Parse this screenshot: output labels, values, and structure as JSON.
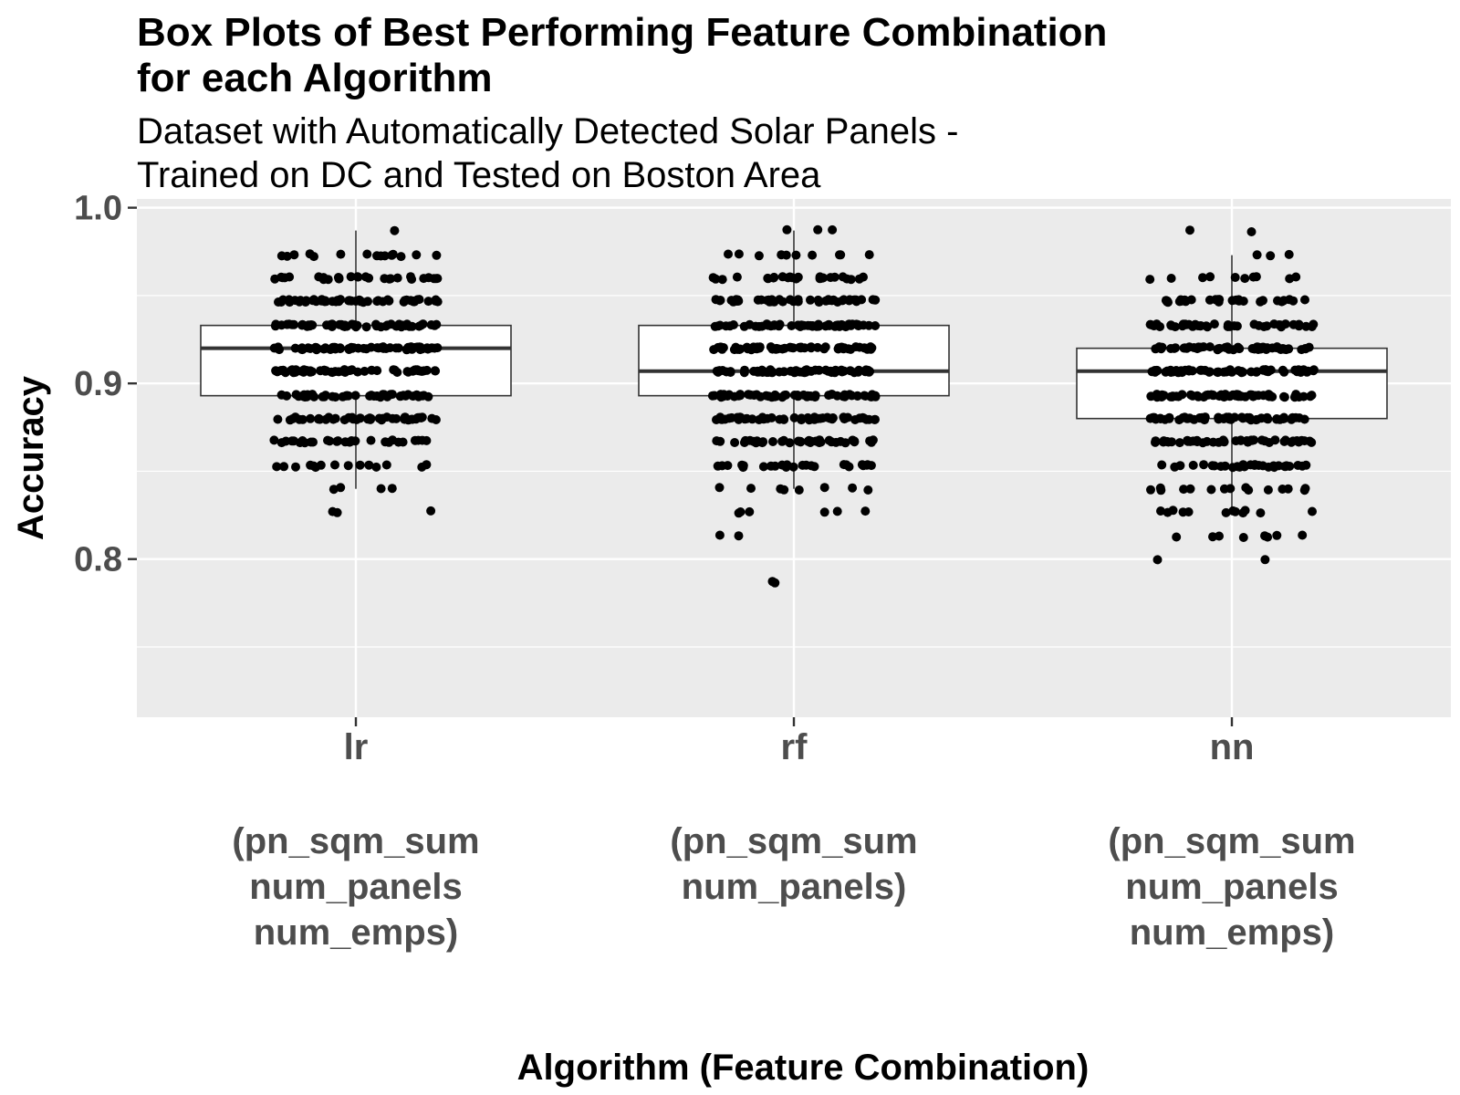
{
  "chart_data": {
    "type": "box",
    "title_lines": [
      "Box Plots of Best Performing Feature Combination",
      "for each Algorithm"
    ],
    "subtitle_lines": [
      "Dataset with Automatically Detected Solar Panels -",
      "Trained on DC and Tested on Boston Area"
    ],
    "xlabel": "Algorithm (Feature Combination)",
    "ylabel": "Accuracy",
    "ylim": [
      0.71,
      1.005
    ],
    "yticks": [
      0.8,
      0.9,
      1.0
    ],
    "ytick_labels": [
      "0.8",
      "0.9",
      "1.0"
    ],
    "grid": true,
    "colors": {
      "panel_background": "#ebebeb",
      "grid": "#ffffff",
      "box_fill": "#ffffff",
      "box_stroke": "#333333",
      "points": "#000000"
    },
    "categories": [
      {
        "name": "lr",
        "features": [
          "(pn_sqm_sum",
          "num_panels",
          "num_emps)"
        ],
        "box": {
          "whisker_low": 0.84,
          "q1": 0.893,
          "median": 0.92,
          "q3": 0.933,
          "whisker_high": 0.987
        },
        "points": [
          {
            "value": 0.987,
            "count": 1
          },
          {
            "value": 0.973,
            "count": 15
          },
          {
            "value": 0.96,
            "count": 28
          },
          {
            "value": 0.947,
            "count": 50
          },
          {
            "value": 0.933,
            "count": 60
          },
          {
            "value": 0.92,
            "count": 60
          },
          {
            "value": 0.907,
            "count": 55
          },
          {
            "value": 0.893,
            "count": 45
          },
          {
            "value": 0.88,
            "count": 45
          },
          {
            "value": 0.867,
            "count": 28
          },
          {
            "value": 0.853,
            "count": 15
          },
          {
            "value": 0.84,
            "count": 4
          },
          {
            "value": 0.827,
            "count": 3
          }
        ]
      },
      {
        "name": "rf",
        "features": [
          "(pn_sqm_sum",
          "num_panels)"
        ],
        "box": {
          "whisker_low": 0.84,
          "q1": 0.893,
          "median": 0.907,
          "q3": 0.933,
          "whisker_high": 0.987
        },
        "points": [
          {
            "value": 0.987,
            "count": 3
          },
          {
            "value": 0.973,
            "count": 10
          },
          {
            "value": 0.96,
            "count": 25
          },
          {
            "value": 0.947,
            "count": 45
          },
          {
            "value": 0.933,
            "count": 55
          },
          {
            "value": 0.92,
            "count": 60
          },
          {
            "value": 0.907,
            "count": 60
          },
          {
            "value": 0.893,
            "count": 60
          },
          {
            "value": 0.88,
            "count": 50
          },
          {
            "value": 0.867,
            "count": 40
          },
          {
            "value": 0.853,
            "count": 25
          },
          {
            "value": 0.84,
            "count": 8
          },
          {
            "value": 0.827,
            "count": 6
          },
          {
            "value": 0.813,
            "count": 2
          },
          {
            "value": 0.787,
            "count": 2
          }
        ]
      },
      {
        "name": "nn",
        "features": [
          "(pn_sqm_sum",
          "num_panels",
          "num_emps)"
        ],
        "box": {
          "whisker_low": 0.827,
          "q1": 0.88,
          "median": 0.907,
          "q3": 0.92,
          "whisker_high": 0.973
        },
        "points": [
          {
            "value": 0.987,
            "count": 2
          },
          {
            "value": 0.973,
            "count": 3
          },
          {
            "value": 0.96,
            "count": 10
          },
          {
            "value": 0.947,
            "count": 30
          },
          {
            "value": 0.933,
            "count": 45
          },
          {
            "value": 0.92,
            "count": 55
          },
          {
            "value": 0.907,
            "count": 60
          },
          {
            "value": 0.893,
            "count": 60
          },
          {
            "value": 0.88,
            "count": 55
          },
          {
            "value": 0.867,
            "count": 45
          },
          {
            "value": 0.853,
            "count": 30
          },
          {
            "value": 0.84,
            "count": 15
          },
          {
            "value": 0.827,
            "count": 12
          },
          {
            "value": 0.813,
            "count": 8
          },
          {
            "value": 0.8,
            "count": 2
          }
        ]
      }
    ]
  }
}
